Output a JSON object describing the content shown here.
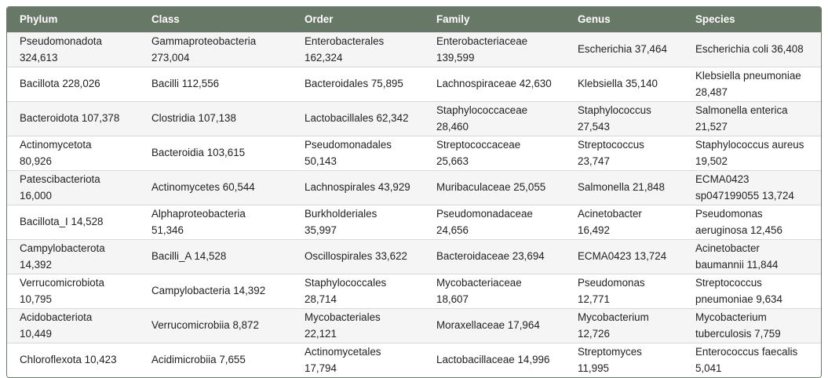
{
  "table": {
    "headers": [
      "Phylum",
      "Class",
      "Order",
      "Family",
      "Genus",
      "Species"
    ],
    "rows": [
      [
        "Pseudomonadota 324,613",
        "Gammaproteobacteria 273,004",
        "Enterobacterales 162,324",
        "Enterobacteriaceae 139,599",
        "Escherichia 37,464",
        "Escherichia coli 36,408"
      ],
      [
        "Bacillota 228,026",
        "Bacilli 112,556",
        "Bacteroidales 75,895",
        "Lachnospiraceae 42,630",
        "Klebsiella 35,140",
        "Klebsiella pneumoniae 28,487"
      ],
      [
        "Bacteroidota 107,378",
        "Clostridia 107,138",
        "Lactobacillales 62,342",
        "Staphylococcaceae 28,460",
        "Staphylococcus 27,543",
        "Salmonella enterica 21,527"
      ],
      [
        "Actinomycetota 80,926",
        "Bacteroidia 103,615",
        "Pseudomonadales 50,143",
        "Streptococcaceae 25,663",
        "Streptococcus 23,747",
        "Staphylococcus aureus 19,502"
      ],
      [
        "Patescibacteriota 16,000",
        "Actinomycetes 60,544",
        "Lachnospirales 43,929",
        "Muribaculaceae 25,055",
        "Salmonella 21,848",
        "ECMA0423 sp047199055 13,724"
      ],
      [
        "Bacillota_I 14,528",
        "Alphaproteobacteria 51,346",
        "Burkholderiales 35,997",
        "Pseudomonadaceae 24,656",
        "Acinetobacter 16,492",
        "Pseudomonas aeruginosa 12,456"
      ],
      [
        "Campylobacterota 14,392",
        "Bacilli_A 14,528",
        "Oscillospirales 33,622",
        "Bacteroidaceae 23,694",
        "ECMA0423 13,724",
        "Acinetobacter baumannii 11,844"
      ],
      [
        "Verrucomicrobiota 10,795",
        "Campylobacteria 14,392",
        "Staphylococcales 28,714",
        "Mycobacteriaceae 18,607",
        "Pseudomonas 12,771",
        "Streptococcus pneumoniae 9,634"
      ],
      [
        "Acidobacteriota 10,449",
        "Verrucomicrobiia 8,872",
        "Mycobacteriales 22,121",
        "Moraxellaceae 17,964",
        "Mycobacterium 12,726",
        "Mycobacterium tuberculosis 7,759"
      ],
      [
        "Chloroflexota 10,423",
        "Acidimicrobiia 7,655",
        "Actinomycetales 17,794",
        "Lactobacillaceae 14,996",
        "Streptomyces 11,995",
        "Enterococcus faecalis 5,041"
      ]
    ]
  },
  "colors": {
    "header_bg": "#677866",
    "stripe": "#f5f5f5"
  }
}
